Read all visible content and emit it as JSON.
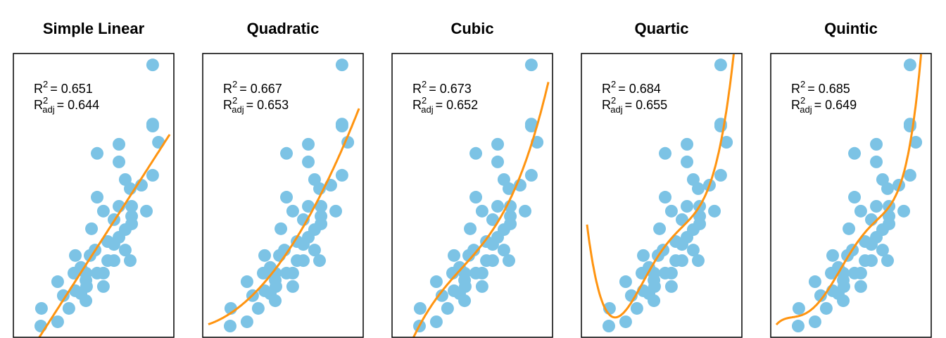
{
  "chart_data": [
    {
      "type": "scatter",
      "title": "Simple Linear",
      "degree": 1,
      "r2_label": "R",
      "r2_sup": "2",
      "r2": "= 0.651",
      "r2adj_sub": "adj",
      "r2adj": "= 0.644"
    },
    {
      "type": "scatter",
      "title": "Quadratic",
      "degree": 2,
      "r2_label": "R",
      "r2_sup": "2",
      "r2": "= 0.667",
      "r2adj_sub": "adj",
      "r2adj": "= 0.653"
    },
    {
      "type": "scatter",
      "title": "Cubic",
      "degree": 3,
      "r2_label": "R",
      "r2_sup": "2",
      "r2": "= 0.673",
      "r2adj_sub": "adj",
      "r2adj": "= 0.652"
    },
    {
      "type": "scatter",
      "title": "Quartic",
      "degree": 4,
      "r2_label": "R",
      "r2_sup": "2",
      "r2": "= 0.684",
      "r2adj_sub": "adj",
      "r2adj": "= 0.655"
    },
    {
      "type": "scatter",
      "title": "Quintic",
      "degree": 5,
      "r2_label": "R",
      "r2_sup": "2",
      "r2": "= 0.685",
      "r2adj_sub": "adj",
      "r2adj": "= 0.649"
    }
  ],
  "shared": {
    "xlim": [
      0,
      10
    ],
    "ylim": [
      0,
      10
    ],
    "axes_visible": false,
    "grid": false,
    "fit_range": [
      0.35,
      9.74
    ],
    "point_color": "#7CC3E5",
    "fit_color": "#FF9410",
    "points": [
      [
        8.68,
        9.6
      ],
      [
        8.68,
        7.52
      ],
      [
        8.68,
        7.45
      ],
      [
        9.04,
        6.88
      ],
      [
        6.58,
        6.81
      ],
      [
        5.22,
        6.49
      ],
      [
        6.58,
        6.19
      ],
      [
        6.97,
        5.57
      ],
      [
        7.28,
        5.25
      ],
      [
        7.98,
        5.37
      ],
      [
        8.68,
        5.72
      ],
      [
        5.22,
        4.95
      ],
      [
        6.58,
        4.63
      ],
      [
        7.37,
        4.63
      ],
      [
        5.61,
        4.46
      ],
      [
        8.29,
        4.46
      ],
      [
        7.37,
        4.28
      ],
      [
        6.27,
        4.16
      ],
      [
        7.37,
        4.01
      ],
      [
        6.97,
        3.81
      ],
      [
        4.87,
        3.84
      ],
      [
        6.58,
        3.54
      ],
      [
        5.88,
        3.39
      ],
      [
        6.27,
        3.29
      ],
      [
        5.09,
        3.09
      ],
      [
        6.97,
        3.09
      ],
      [
        3.86,
        2.9
      ],
      [
        4.78,
        2.9
      ],
      [
        5.88,
        2.72
      ],
      [
        6.27,
        2.72
      ],
      [
        7.28,
        2.72
      ],
      [
        4.21,
        2.48
      ],
      [
        3.77,
        2.28
      ],
      [
        4.52,
        2.28
      ],
      [
        5.22,
        2.28
      ],
      [
        5.61,
        2.28
      ],
      [
        4.52,
        2.03
      ],
      [
        2.76,
        1.98
      ],
      [
        5.61,
        1.81
      ],
      [
        4.56,
        1.81
      ],
      [
        3.86,
        1.66
      ],
      [
        4.21,
        1.56
      ],
      [
        3.11,
        1.49
      ],
      [
        4.52,
        1.31
      ],
      [
        3.46,
        1.04
      ],
      [
        1.75,
        1.04
      ],
      [
        2.76,
        0.57
      ],
      [
        1.71,
        0.42
      ]
    ]
  }
}
